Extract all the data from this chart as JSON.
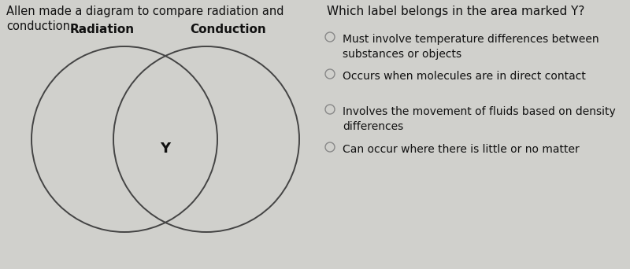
{
  "background_color": "#d0d0cc",
  "left_text_line1": "Allen made a diagram to compare radiation and",
  "left_text_line2": "conduction.",
  "label_radiation": "Radiation",
  "label_conduction": "Conduction",
  "label_y": "Y",
  "question": "Which label belongs in the area marked Y?",
  "options": [
    "Must involve temperature differences between\nsubstances or objects",
    "Occurs when molecules are in direct contact",
    "Involves the movement of fluids based on density\ndifferences",
    "Can occur where there is little or no matter"
  ],
  "circle_color": "#444444",
  "circle_linewidth": 1.4,
  "text_color": "#111111",
  "label_fontsize": 11,
  "question_fontsize": 11,
  "option_fontsize": 10,
  "header_fontsize": 10.5,
  "radio_color": "#888888"
}
